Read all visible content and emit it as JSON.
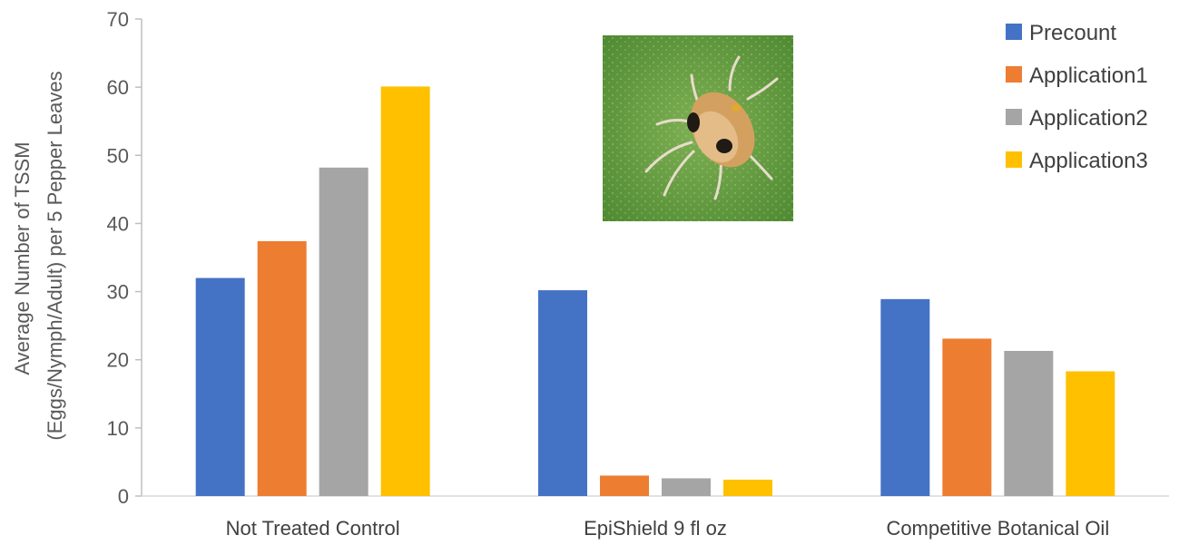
{
  "chart_data": {
    "type": "bar",
    "title": "",
    "xlabel": "",
    "ylabel_lines": [
      "Average Number of TSSM",
      "(Eggs/Nymph/Adult) per 5 Pepper Leaves"
    ],
    "ylim": [
      0,
      70
    ],
    "yticks": [
      0,
      10,
      20,
      30,
      40,
      50,
      60,
      70
    ],
    "grid": false,
    "legend_position": "top-right",
    "categories": [
      "Not Treated Control",
      "EpiShield 9 fl oz",
      "Competitive Botanical Oil"
    ],
    "series": [
      {
        "name": "Precount",
        "color": "#4472C4",
        "values": [
          32,
          30.2,
          28.9
        ]
      },
      {
        "name": "Application1",
        "color": "#ED7D31",
        "values": [
          37.4,
          3,
          23.1
        ]
      },
      {
        "name": "Application2",
        "color": "#A5A5A5",
        "values": [
          48.2,
          2.6,
          21.3
        ]
      },
      {
        "name": "Application3",
        "color": "#FFC000",
        "values": [
          60.1,
          2.4,
          18.3
        ]
      }
    ],
    "inset_image": {
      "subject": "spider-mite-photo",
      "colors": {
        "background": "#5f9a3c",
        "body": "#d9a35a"
      }
    }
  }
}
